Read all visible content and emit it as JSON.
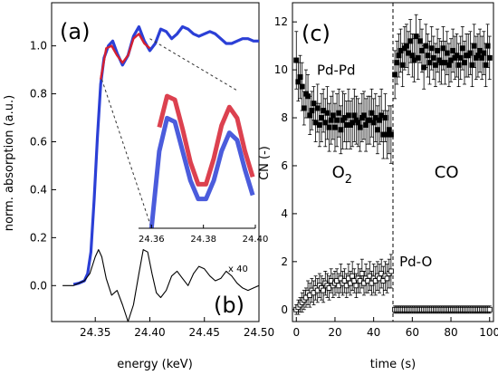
{
  "chart_data": [
    {
      "panel": "a-b",
      "type": "line",
      "panel_labels": [
        "(a)",
        "(b)"
      ],
      "xlabel": "energy (keV)",
      "ylabel": "norm. absorption (a.u.)",
      "xlim": [
        24.31,
        24.5
      ],
      "ylim": [
        -0.15,
        1.18
      ],
      "xticks": [
        24.35,
        24.4,
        24.45,
        24.5
      ],
      "xtick_labels": [
        "24.35",
        "24.40",
        "24.45",
        "24.50"
      ],
      "yticks": [
        0.0,
        0.2,
        0.4,
        0.6,
        0.8,
        1.0
      ],
      "ytick_labels": [
        "0.0",
        "0.2",
        "0.4",
        "0.6",
        "0.8",
        "1.0"
      ],
      "series": [
        {
          "color": "#2b3fd6",
          "x": [
            24.33,
            24.335,
            24.34,
            24.343,
            24.346,
            24.349,
            24.352,
            24.355,
            24.358,
            24.362,
            24.366,
            24.37,
            24.375,
            24.38,
            24.385,
            24.39,
            24.395,
            24.4,
            24.405,
            24.41,
            24.415,
            24.42,
            24.425,
            24.43,
            24.435,
            24.44,
            24.445,
            24.45,
            24.455,
            24.46,
            24.465,
            24.47,
            24.475,
            24.48,
            24.485,
            24.49,
            24.495,
            24.5
          ],
          "y": [
            0.005,
            0.01,
            0.02,
            0.05,
            0.14,
            0.36,
            0.62,
            0.84,
            0.95,
            1.0,
            1.02,
            0.97,
            0.92,
            0.96,
            1.04,
            1.08,
            1.02,
            0.98,
            1.01,
            1.07,
            1.06,
            1.03,
            1.05,
            1.08,
            1.07,
            1.05,
            1.04,
            1.05,
            1.06,
            1.05,
            1.03,
            1.01,
            1.01,
            1.02,
            1.03,
            1.03,
            1.02,
            1.02
          ]
        },
        {
          "color": "#d62030",
          "x": [
            24.355,
            24.36,
            24.365,
            24.37,
            24.375,
            24.38,
            24.385,
            24.39,
            24.395,
            24.4
          ],
          "y": [
            0.86,
            0.99,
            1.0,
            0.96,
            0.93,
            0.96,
            1.03,
            1.05,
            1.01,
            0.99
          ]
        },
        {
          "label": "x 40",
          "color": "#000000",
          "x": [
            24.32,
            24.33,
            24.34,
            24.345,
            24.35,
            24.353,
            24.356,
            24.36,
            24.365,
            24.37,
            24.375,
            24.38,
            24.385,
            24.39,
            24.394,
            24.398,
            24.402,
            24.406,
            24.41,
            24.415,
            24.42,
            24.425,
            24.43,
            24.435,
            24.44,
            24.445,
            24.45,
            24.455,
            24.46,
            24.465,
            24.47,
            24.475,
            24.48,
            24.485,
            24.49,
            24.495,
            24.5
          ],
          "y": [
            0.0,
            0.0,
            0.02,
            0.05,
            0.12,
            0.15,
            0.12,
            0.03,
            -0.04,
            -0.02,
            -0.08,
            -0.15,
            -0.08,
            0.05,
            0.15,
            0.14,
            0.05,
            -0.03,
            -0.05,
            -0.02,
            0.04,
            0.06,
            0.03,
            0.0,
            0.05,
            0.08,
            0.07,
            0.04,
            0.02,
            0.03,
            0.06,
            0.04,
            0.01,
            -0.01,
            -0.02,
            -0.01,
            0.0
          ]
        }
      ],
      "inset": {
        "xlim": [
          24.355,
          24.4
        ],
        "xticks": [
          24.36,
          24.38,
          24.4
        ],
        "xtick_labels": [
          "24.36",
          "24.38",
          "24.40"
        ],
        "series": [
          {
            "color": "#2b3fd6",
            "x": [
              24.36,
              24.363,
              24.366,
              24.369,
              24.372,
              24.375,
              24.378,
              24.381,
              24.384,
              24.387,
              24.39,
              24.393,
              24.396,
              24.399
            ],
            "y": [
              0.0,
              0.42,
              0.6,
              0.58,
              0.42,
              0.26,
              0.16,
              0.16,
              0.26,
              0.42,
              0.52,
              0.48,
              0.32,
              0.18
            ]
          },
          {
            "color": "#d62030",
            "x": [
              24.363,
              24.366,
              24.369,
              24.372,
              24.375,
              24.378,
              24.381,
              24.384,
              24.387,
              24.39,
              24.393,
              24.396,
              24.399
            ],
            "y": [
              0.55,
              0.72,
              0.7,
              0.54,
              0.36,
              0.24,
              0.24,
              0.38,
              0.56,
              0.66,
              0.6,
              0.42,
              0.28
            ]
          }
        ]
      }
    },
    {
      "panel": "c",
      "type": "scatter",
      "panel_labels": [
        "(c)"
      ],
      "xlabel": "time (s)",
      "ylabel": "CN (-)",
      "xlim": [
        -2,
        102
      ],
      "ylim": [
        -0.5,
        12.8
      ],
      "xticks": [
        0,
        20,
        40,
        60,
        80,
        100
      ],
      "xtick_labels": [
        "0",
        "20",
        "40",
        "60",
        "80",
        "100"
      ],
      "yticks": [
        0,
        2,
        4,
        6,
        8,
        10,
        12
      ],
      "ytick_labels": [
        "0",
        "2",
        "4",
        "6",
        "8",
        "10",
        "12"
      ],
      "divider_x": 50,
      "region_labels": [
        {
          "text": "O",
          "sub": "2",
          "x": 25,
          "y": 5.5
        },
        {
          "text": "CO",
          "sub": "",
          "x": 78,
          "y": 5.5
        }
      ],
      "annotations": [
        {
          "text": "Pd-Pd",
          "x": 20,
          "y": 9.8
        },
        {
          "text": "Pd-O",
          "x": 58,
          "y": 1.8
        }
      ],
      "series": [
        {
          "name": "Pd-Pd",
          "marker": "filled-square",
          "x": [
            0,
            1,
            2,
            3,
            4,
            5,
            6,
            7,
            8,
            9,
            10,
            11,
            12,
            13,
            14,
            15,
            16,
            17,
            18,
            19,
            20,
            21,
            22,
            23,
            24,
            25,
            26,
            27,
            28,
            29,
            30,
            31,
            32,
            33,
            34,
            35,
            36,
            37,
            38,
            39,
            40,
            41,
            42,
            43,
            44,
            45,
            46,
            47,
            48,
            49,
            51,
            52,
            53,
            54,
            55,
            56,
            57,
            58,
            59,
            60,
            61,
            62,
            63,
            64,
            65,
            66,
            67,
            68,
            69,
            70,
            71,
            72,
            73,
            74,
            75,
            76,
            77,
            78,
            79,
            80,
            81,
            82,
            83,
            84,
            85,
            86,
            87,
            88,
            89,
            90,
            91,
            92,
            93,
            94,
            95,
            96,
            97,
            98,
            99,
            100
          ],
          "y": [
            10.4,
            9.5,
            9.7,
            9.3,
            8.4,
            9.0,
            8.9,
            8.1,
            8.3,
            8.6,
            7.8,
            8.4,
            7.7,
            8.0,
            8.3,
            7.8,
            8.2,
            7.6,
            7.9,
            8.1,
            7.6,
            7.9,
            8.2,
            7.5,
            7.9,
            8.0,
            7.7,
            8.1,
            7.7,
            7.8,
            8.1,
            7.9,
            7.8,
            7.6,
            8.0,
            8.1,
            7.7,
            7.9,
            7.9,
            8.2,
            7.8,
            8.0,
            7.5,
            7.9,
            8.1,
            7.3,
            8.0,
            7.3,
            7.5,
            7.3,
            9.8,
            10.3,
            10.6,
            10.8,
            10.2,
            10.9,
            11.0,
            10.7,
            11.2,
            10.6,
            10.4,
            11.4,
            10.5,
            11.2,
            10.8,
            10.1,
            11.0,
            10.6,
            10.3,
            10.9,
            10.5,
            10.2,
            10.8,
            10.4,
            10.3,
            10.9,
            10.3,
            10.7,
            10.2,
            10.4,
            10.8,
            10.5,
            10.6,
            10.2,
            10.5,
            10.9,
            10.3,
            10.6,
            10.6,
            10.7,
            10.2,
            11.0,
            10.5,
            10.6,
            10.8,
            10.5,
            10.7,
            10.2,
            11.0,
            10.5
          ],
          "err": [
            1.2,
            0.8,
            0.9,
            1.0,
            0.7,
            1.0,
            0.9,
            0.8,
            0.8,
            0.7,
            0.8,
            1.0,
            0.9,
            1.0,
            0.9,
            1.0,
            1.1,
            1.0,
            1.0,
            1.0,
            1.0,
            1.1,
            1.0,
            1.0,
            1.2,
            1.0,
            1.0,
            1.1,
            1.0,
            1.0,
            1.1,
            1.0,
            1.0,
            1.0,
            1.0,
            1.0,
            1.1,
            1.0,
            1.0,
            1.0,
            1.0,
            1.0,
            1.0,
            1.0,
            1.1,
            1.0,
            1.0,
            1.0,
            1.0,
            1.2,
            1.0,
            0.9,
            0.9,
            0.9,
            0.9,
            0.9,
            0.9,
            0.9,
            0.9,
            0.9,
            0.9,
            0.9,
            0.9,
            0.9,
            0.9,
            0.9,
            0.9,
            0.9,
            0.9,
            0.9,
            0.9,
            0.9,
            0.9,
            0.9,
            0.9,
            0.9,
            0.9,
            0.9,
            0.9,
            0.9,
            0.9,
            0.9,
            0.9,
            0.9,
            0.9,
            0.9,
            0.9,
            0.9,
            0.9,
            0.9,
            0.9,
            0.9,
            0.9,
            0.9,
            0.9,
            0.9,
            0.9,
            0.9,
            0.9,
            0.9
          ]
        },
        {
          "name": "Pd-O",
          "marker": "open-square",
          "x": [
            0,
            1,
            2,
            3,
            4,
            5,
            6,
            7,
            8,
            9,
            10,
            11,
            12,
            13,
            14,
            15,
            16,
            17,
            18,
            19,
            20,
            21,
            22,
            23,
            24,
            25,
            26,
            27,
            28,
            29,
            30,
            31,
            32,
            33,
            34,
            35,
            36,
            37,
            38,
            39,
            40,
            41,
            42,
            43,
            44,
            45,
            46,
            47,
            48,
            49,
            51,
            52,
            53,
            54,
            55,
            56,
            57,
            58,
            59,
            60,
            61,
            62,
            63,
            64,
            65,
            66,
            67,
            68,
            69,
            70,
            71,
            72,
            73,
            74,
            75,
            76,
            77,
            78,
            79,
            80,
            81,
            82,
            83,
            84,
            85,
            86,
            87,
            88,
            89,
            90,
            91,
            92,
            93,
            94,
            95,
            96,
            97,
            98,
            99,
            100
          ],
          "y": [
            0.0,
            0.1,
            0.2,
            0.3,
            0.4,
            0.5,
            0.7,
            0.6,
            0.8,
            0.7,
            0.9,
            0.8,
            1.0,
            0.9,
            0.8,
            1.1,
            1.0,
            0.9,
            1.2,
            1.0,
            1.1,
            1.2,
            1.0,
            1.3,
            1.1,
            1.2,
            1.0,
            1.3,
            1.1,
            1.4,
            1.2,
            1.0,
            1.3,
            1.2,
            1.5,
            1.1,
            1.3,
            1.2,
            1.4,
            1.1,
            1.3,
            1.2,
            1.4,
            1.3,
            1.5,
            1.2,
            1.4,
            1.3,
            1.5,
            1.6,
            0.0,
            0.0,
            0.0,
            0.0,
            0.0,
            0.0,
            0.0,
            0.0,
            0.0,
            0.0,
            0.0,
            0.0,
            0.0,
            0.0,
            0.0,
            0.0,
            0.0,
            0.0,
            0.0,
            0.0,
            0.0,
            0.0,
            0.0,
            0.0,
            0.0,
            0.0,
            0.0,
            0.0,
            0.0,
            0.0,
            0.0,
            0.0,
            0.0,
            0.0,
            0.0,
            0.0,
            0.0,
            0.0,
            0.0,
            0.0,
            0.0,
            0.0,
            0.0,
            0.0,
            0.0,
            0.0,
            0.0,
            0.0,
            0.0,
            0.0
          ],
          "err": [
            0.2,
            0.3,
            0.3,
            0.4,
            0.4,
            0.4,
            0.5,
            0.5,
            0.5,
            0.5,
            0.5,
            0.5,
            0.5,
            0.5,
            0.5,
            0.5,
            0.5,
            0.5,
            0.5,
            0.5,
            0.5,
            0.5,
            0.5,
            0.6,
            0.5,
            0.5,
            0.5,
            0.6,
            0.5,
            0.6,
            0.5,
            0.5,
            0.6,
            0.5,
            0.6,
            0.5,
            0.6,
            0.5,
            0.6,
            0.5,
            0.6,
            0.6,
            0.6,
            0.6,
            0.6,
            0.6,
            0.6,
            0.6,
            0.6,
            0.7,
            0.15,
            0.15,
            0.15,
            0.15,
            0.15,
            0.15,
            0.15,
            0.15,
            0.15,
            0.15,
            0.15,
            0.15,
            0.15,
            0.15,
            0.15,
            0.15,
            0.15,
            0.15,
            0.15,
            0.15,
            0.15,
            0.15,
            0.15,
            0.15,
            0.15,
            0.15,
            0.15,
            0.15,
            0.15,
            0.15,
            0.15,
            0.15,
            0.15,
            0.15,
            0.15,
            0.15,
            0.15,
            0.15,
            0.15,
            0.15,
            0.15,
            0.15,
            0.15,
            0.15,
            0.15,
            0.15,
            0.15,
            0.15,
            0.15,
            0.15
          ]
        }
      ]
    }
  ]
}
